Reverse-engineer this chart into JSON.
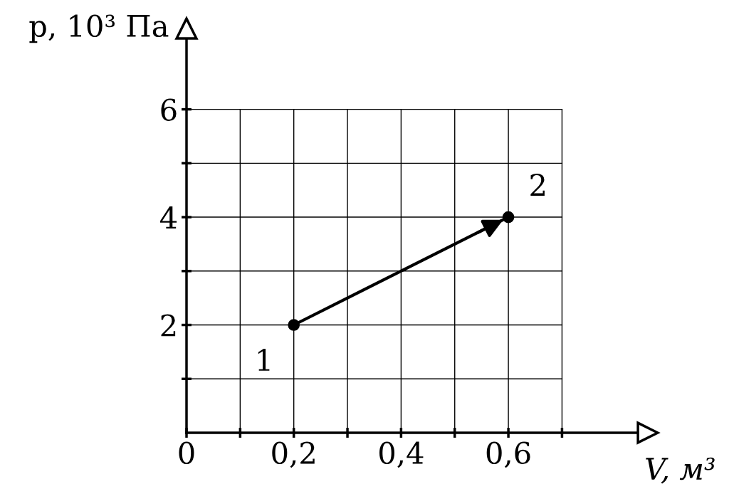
{
  "chart_data": {
    "type": "line",
    "xlabel": "V, м³",
    "ylabel": "p, 10³ Па",
    "x": [
      0.2,
      0.6
    ],
    "series": [
      {
        "color": "#000000",
        "values": [
          2,
          4
        ]
      }
    ],
    "marker": "circle",
    "line_style": "solid",
    "grid": true,
    "legend": false,
    "xlim": [
      0,
      0.86
    ],
    "ylim": [
      0,
      7.5
    ],
    "xticks": [
      {
        "value": 0,
        "label": "0"
      },
      {
        "value": 0.1,
        "label": null
      },
      {
        "value": 0.2,
        "label": "0,2"
      },
      {
        "value": 0.3,
        "label": null
      },
      {
        "value": 0.4,
        "label": "0,4"
      },
      {
        "value": 0.5,
        "label": null
      },
      {
        "value": 0.6,
        "label": "0,6"
      },
      {
        "value": 0.7,
        "label": null
      }
    ],
    "yticks": [
      {
        "value": 1,
        "label": null
      },
      2,
      {
        "value": 3,
        "label": null
      },
      4,
      {
        "value": 5,
        "label": null
      },
      6
    ],
    "annotations": [
      {
        "text": "1",
        "x": 0.2,
        "y": 2
      },
      {
        "text": "2",
        "x": 0.6,
        "y": 4
      }
    ]
  }
}
